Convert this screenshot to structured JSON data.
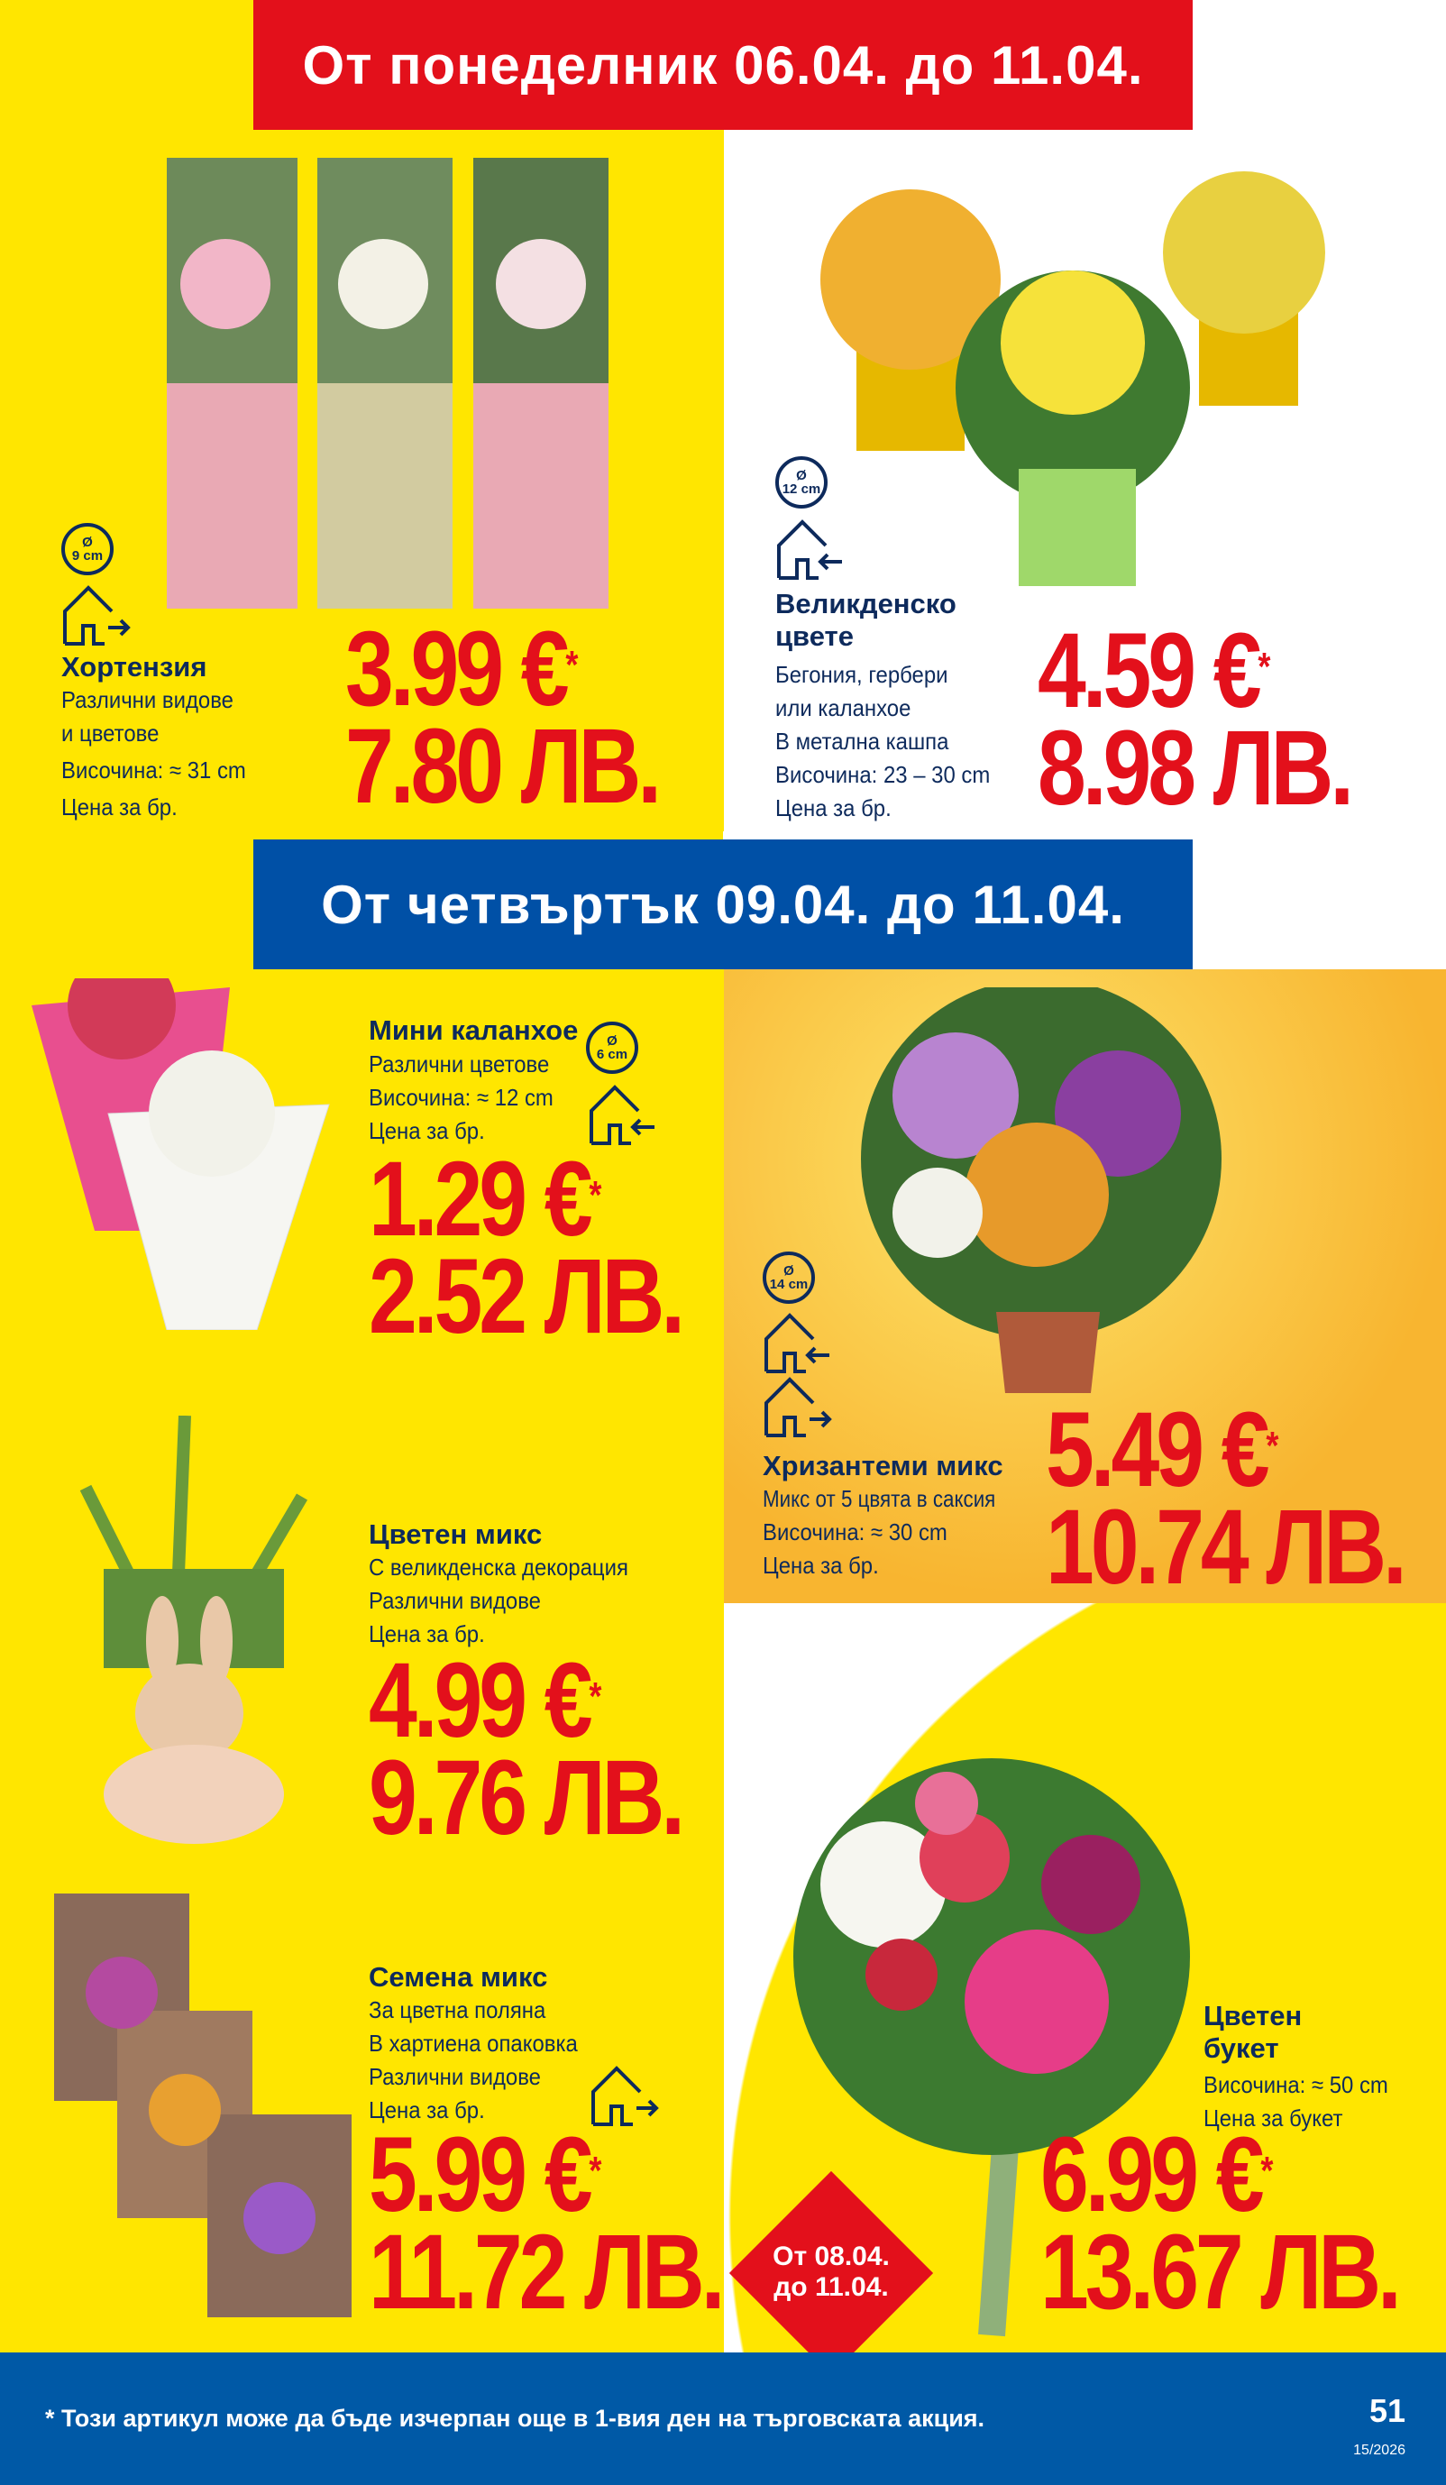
{
  "colors": {
    "yellow": "#ffe600",
    "red": "#e3101b",
    "blue": "#0050a6",
    "navy": "#0d2a5c",
    "orange": "#f8b530"
  },
  "banner_top": {
    "text": "От понеделник 06.04. до 11.04."
  },
  "banner_mid": {
    "text": "От четвъртък 09.04. до 11.04."
  },
  "products": [
    {
      "name": "Хортензия",
      "lines": [
        "Различни видове",
        "и цветове",
        "Височина: ≈ 31 cm",
        "Цена за бр."
      ],
      "diameter": "9 cm",
      "price_eur": "3.99 €",
      "price_bgn": "7.80 ЛВ.",
      "asterisk": "*",
      "icons": [
        "pot-diameter-icon",
        "outdoor-house-icon"
      ]
    },
    {
      "name": "Великденско цвете",
      "lines": [
        "Бегония, гербери",
        "или каланхое",
        "В метална кашпа",
        "Височина: 23 – 30 cm",
        "Цена за бр."
      ],
      "diameter": "12 cm",
      "price_eur": "4.59 €",
      "price_bgn": "8.98 ЛВ.",
      "asterisk": "*",
      "icons": [
        "pot-diameter-icon",
        "indoor-house-icon"
      ]
    },
    {
      "name": "Мини каланхое",
      "lines": [
        "Различни цветове",
        "Височина: ≈ 12 cm",
        "Цена за бр."
      ],
      "diameter": "6 cm",
      "price_eur": "1.29 €",
      "price_bgn": "2.52 ЛВ.",
      "asterisk": "*",
      "icons": [
        "pot-diameter-icon",
        "indoor-house-icon"
      ]
    },
    {
      "name": "Хризантеми микс",
      "lines": [
        "Микс от 5 цвята в саксия",
        "Височина: ≈ 30 cm",
        "Цена за бр."
      ],
      "diameter": "14 cm",
      "price_eur": "5.49 €",
      "price_bgn": "10.74 ЛВ.",
      "asterisk": "*",
      "icons": [
        "pot-diameter-icon",
        "indoor-house-icon",
        "outdoor-house-icon"
      ]
    },
    {
      "name": "Цветен микс",
      "lines": [
        "С великденска декорация",
        "Различни видове",
        "Цена за бр."
      ],
      "price_eur": "4.99 €",
      "price_bgn": "9.76 ЛВ.",
      "asterisk": "*"
    },
    {
      "name": "Семена микс",
      "lines": [
        "За цветна поляна",
        "В хартиена опаковка",
        "Различни видове",
        "Цена за бр."
      ],
      "price_eur": "5.99 €",
      "price_bgn": "11.72 ЛВ.",
      "asterisk": "*",
      "icons": [
        "outdoor-house-icon"
      ]
    },
    {
      "name": "Цветен букет",
      "lines": [
        "Височина: ≈ 50 cm",
        "Цена за букет"
      ],
      "price_eur": "6.99 €",
      "price_bgn": "13.67 ЛВ.",
      "asterisk": "*",
      "badge": [
        "От 08.04.",
        "до 11.04."
      ]
    }
  ],
  "diameter_symbol": "Ø",
  "footer": {
    "note": "* Този артикул може да бъде изчерпан още в 1-вия ден на търговската акция.",
    "page": "51",
    "week": "15/2026"
  }
}
